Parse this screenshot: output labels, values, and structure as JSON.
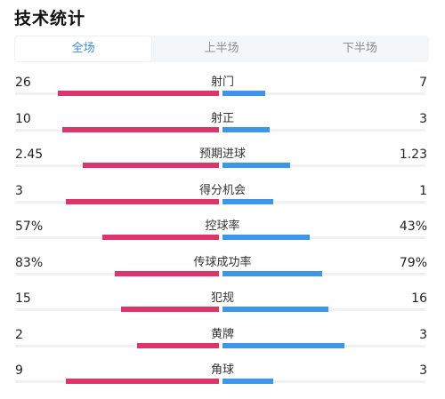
{
  "header": {
    "title": "技术统计"
  },
  "tabs": [
    {
      "label": "全场",
      "active": true
    },
    {
      "label": "上半场",
      "active": false
    },
    {
      "label": "下半场",
      "active": false
    }
  ],
  "colors": {
    "home": "#e0336b",
    "away": "#3d97e6",
    "tab_active": "#3a8ee6"
  },
  "stats": [
    {
      "label": "射门",
      "home": "26",
      "away": "7",
      "home_share": 0.79,
      "away_share": 0.21
    },
    {
      "label": "射正",
      "home": "10",
      "away": "3",
      "home_share": 0.77,
      "away_share": 0.23
    },
    {
      "label": "预期进球",
      "home": "2.45",
      "away": "1.23",
      "home_share": 0.67,
      "away_share": 0.33
    },
    {
      "label": "得分机会",
      "home": "3",
      "away": "1",
      "home_share": 0.75,
      "away_share": 0.25
    },
    {
      "label": "控球率",
      "home": "57%",
      "away": "43%",
      "home_share": 0.57,
      "away_share": 0.43
    },
    {
      "label": "传球成功率",
      "home": "83%",
      "away": "79%",
      "home_share": 0.51,
      "away_share": 0.49
    },
    {
      "label": "犯规",
      "home": "15",
      "away": "16",
      "home_share": 0.48,
      "away_share": 0.52
    },
    {
      "label": "黄牌",
      "home": "2",
      "away": "3",
      "home_share": 0.4,
      "away_share": 0.6
    },
    {
      "label": "角球",
      "home": "9",
      "away": "3",
      "home_share": 0.75,
      "away_share": 0.25
    }
  ]
}
